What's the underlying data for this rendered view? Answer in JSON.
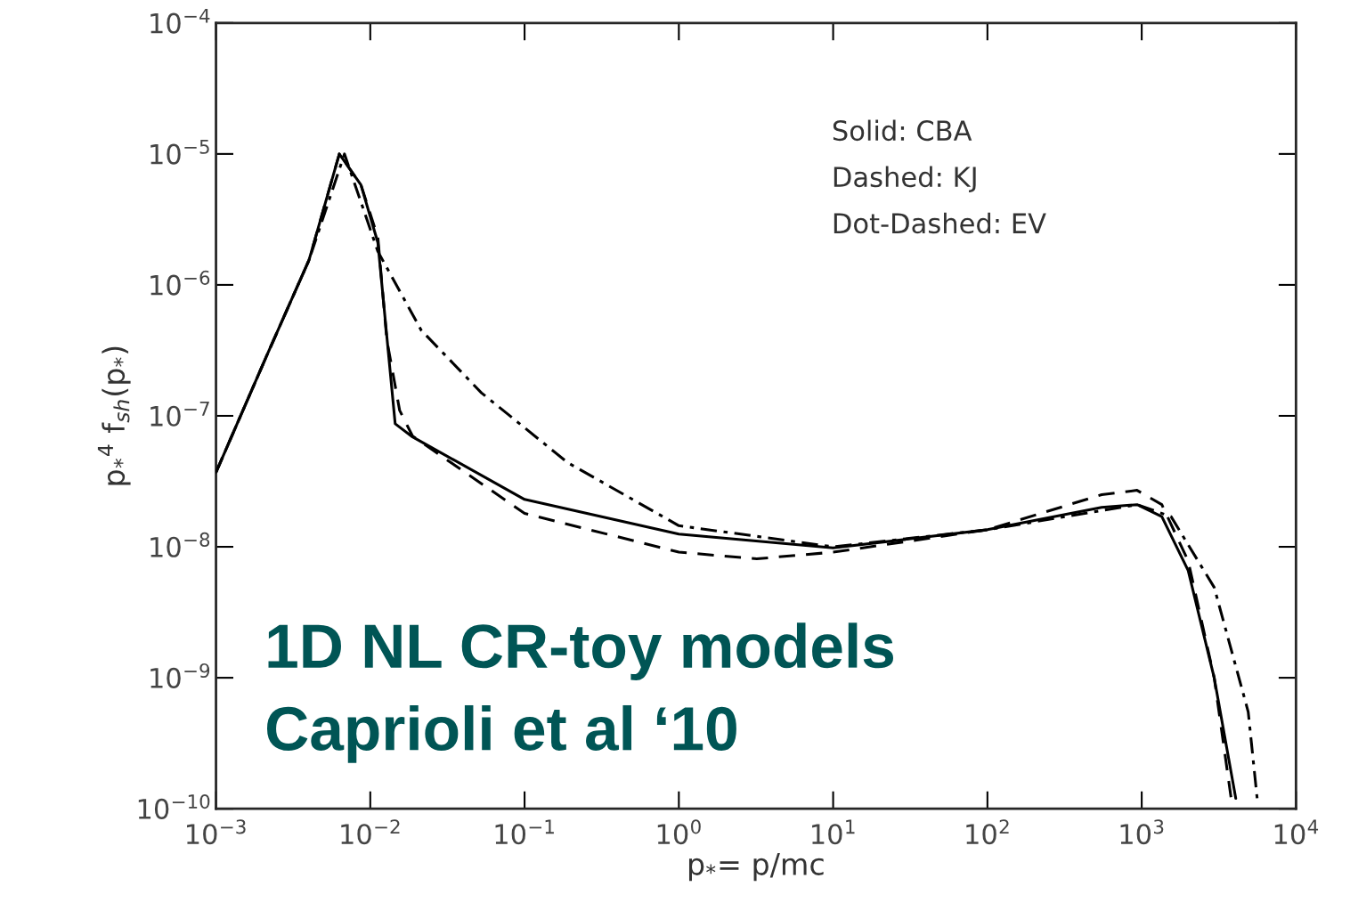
{
  "chart_data": {
    "type": "line",
    "log": "xy",
    "grid": false,
    "marker": "none",
    "xlabel": "p$_{*}$= p/mc",
    "ylabel": "p$_{*}$$^{4}$ f$_{sh}$(p$_{*}$)",
    "xlim": [
      0.001,
      10000
    ],
    "ylim": [
      1e-10,
      0.0001
    ],
    "xticks": [
      {
        "value": 0.001,
        "label": "10$^{−3}$"
      },
      {
        "value": 0.01,
        "label": "10$^{−2}$"
      },
      {
        "value": 0.1,
        "label": "10$^{−1}$"
      },
      {
        "value": 1,
        "label": "10$^{0}$"
      },
      {
        "value": 10,
        "label": "10$^{1}$"
      },
      {
        "value": 100,
        "label": "10$^{2}$"
      },
      {
        "value": 1000,
        "label": "10$^{3}$"
      },
      {
        "value": 10000,
        "label": "10$^{4}$"
      }
    ],
    "yticks": [
      {
        "value": 1e-10,
        "label": "10$^{−10}$"
      },
      {
        "value": 1e-09,
        "label": "10$^{−9}$"
      },
      {
        "value": 1e-08,
        "label": "10$^{−8}$"
      },
      {
        "value": 1e-07,
        "label": "10$^{−7}$"
      },
      {
        "value": 1e-06,
        "label": "10$^{−6}$"
      },
      {
        "value": 1e-05,
        "label": "10$^{−5}$"
      },
      {
        "value": 0.0001,
        "label": "10$^{−4}$"
      }
    ],
    "series": [
      {
        "color": "#000000",
        "line_style": "solid",
        "x": [
          0.001,
          0.00211,
          0.00401,
          0.0063,
          0.0087,
          0.0112,
          0.0145,
          0.0188,
          0.1,
          1,
          10,
          100,
          550,
          933,
          1350,
          2000,
          2950,
          4070
        ],
        "values": [
          3.7e-08,
          2.8e-07,
          1.55e-06,
          1e-05,
          5.8e-06,
          2.1e-06,
          8.7e-08,
          6.9e-08,
          2.3e-08,
          1.25e-08,
          9.8e-09,
          1.35e-08,
          2e-08,
          2.1e-08,
          1.7e-08,
          6.6e-09,
          1e-09,
          1.2e-10
        ]
      },
      {
        "color": "#000000",
        "line_style": "dashed",
        "x": [
          0.001,
          0.00211,
          0.00401,
          0.0063,
          0.0087,
          0.0112,
          0.0128,
          0.0155,
          0.0188,
          0.1,
          1,
          3.2,
          10,
          100,
          550,
          933,
          1350,
          2000,
          2950,
          3800
        ],
        "values": [
          3.7e-08,
          2.8e-07,
          1.55e-06,
          1e-05,
          5.8e-06,
          2.3e-06,
          3.8e-07,
          1.1e-07,
          7e-08,
          1.8e-08,
          9.1e-09,
          8.1e-09,
          9.1e-09,
          1.35e-08,
          2.5e-08,
          2.7e-08,
          2.1e-08,
          7.8e-09,
          1e-09,
          1.2e-10
        ]
      },
      {
        "color": "#000000",
        "line_style": "dashdot",
        "x": [
          0.001,
          0.00211,
          0.00401,
          0.0068,
          0.0112,
          0.0214,
          0.0525,
          0.19,
          1,
          10,
          100,
          933,
          1550,
          2950,
          4900,
          5600
        ],
        "values": [
          3.7e-08,
          2.8e-07,
          1.55e-06,
          1e-05,
          1.8e-06,
          4.5e-07,
          1.5e-07,
          4.4e-08,
          1.45e-08,
          1e-08,
          1.35e-08,
          2.1e-08,
          1.7e-08,
          4.9e-09,
          5.5e-10,
          1.2e-10
        ]
      }
    ],
    "annotations": [
      "Solid: CBA",
      "Dashed: KJ",
      "Dot-Dashed: EV",
      "1D NL CR-toy models",
      "Caprioli et al ‘10"
    ]
  }
}
